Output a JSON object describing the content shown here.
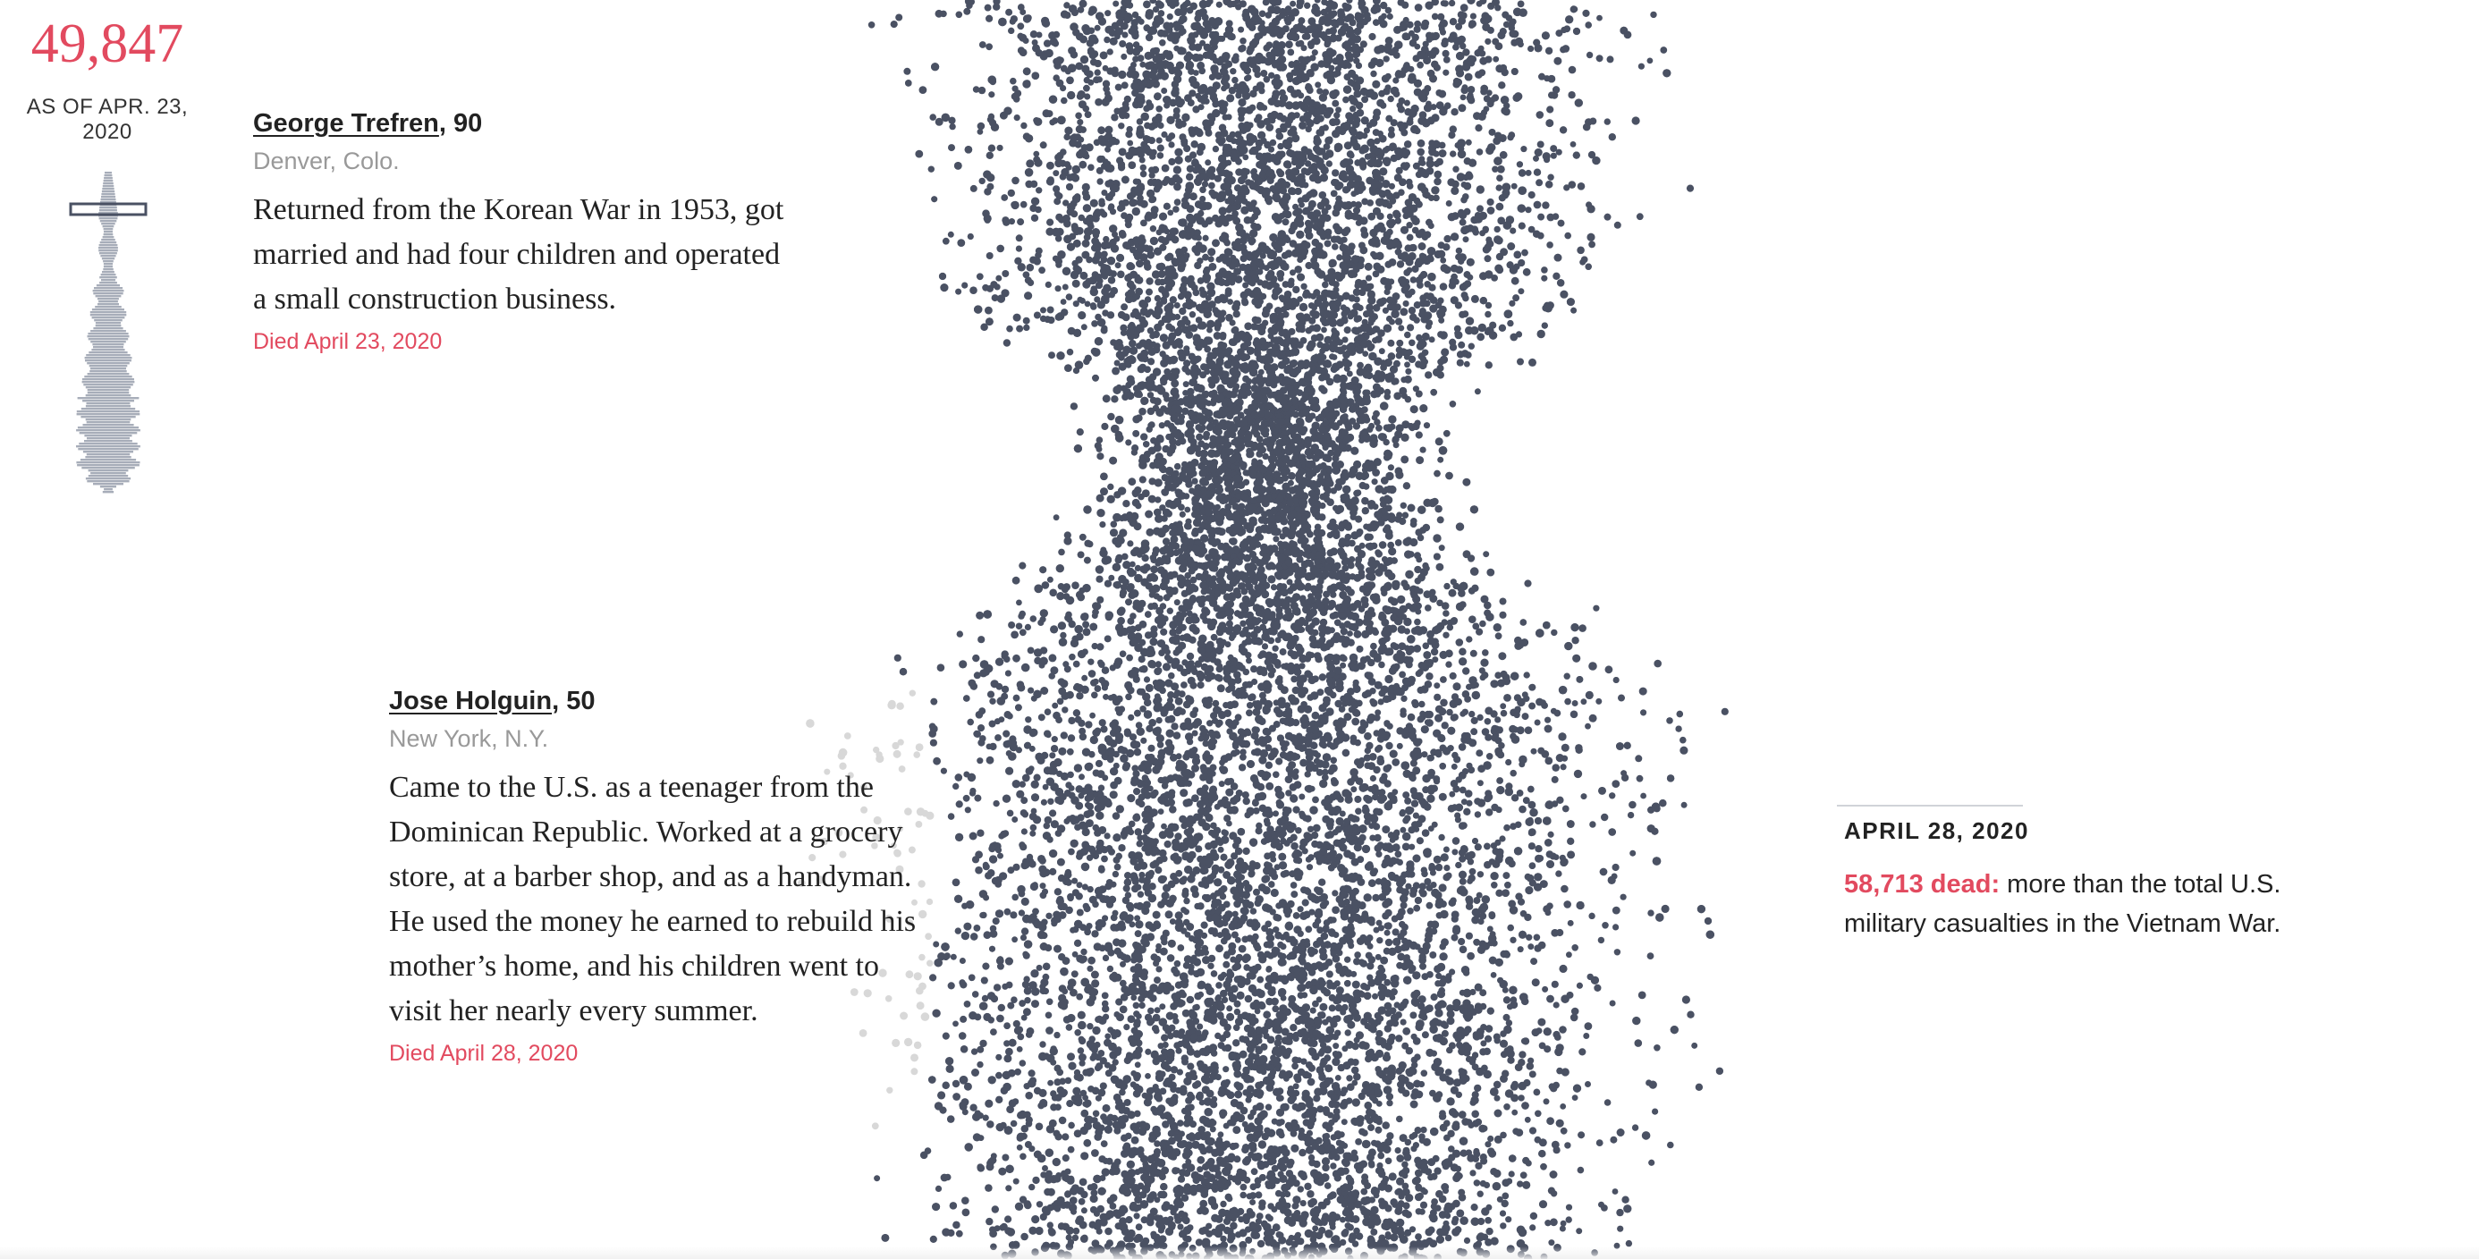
{
  "counter": {
    "value": "49,847",
    "as_of": "AS OF APR. 23, 2020"
  },
  "cards": [
    {
      "name": "George Trefren",
      "age": ", 90",
      "place": "Denver, Colo.",
      "bio": "Returned from the Korean War in 1953, got married and had four children and operated a small construction business.",
      "died": "Died April 23, 2020"
    },
    {
      "name": "Jose Holguin",
      "age": ", 50",
      "place": "New York, N.Y.",
      "bio": "Came to the U.S. as a teenager from the Dominican Republic. Worked at a grocery store, at a barber shop, and as a handyman. He used the money he earned to rebuild his mother’s home, and his children went to visit her nearly every summer.",
      "died": "Died April 28, 2020"
    }
  ],
  "milestone": {
    "date": "APRIL 28, 2020",
    "highlight": "58,713 dead:",
    "text": " more than the total U.S. military casualties in the Vietnam War."
  },
  "colors": {
    "accent": "#e24a5f",
    "dots": "#4a5163",
    "faded_dots": "#d8d8d8",
    "minimap": "#a7adb9"
  },
  "icons": {
    "minimap": "swarm-overview-icon"
  }
}
